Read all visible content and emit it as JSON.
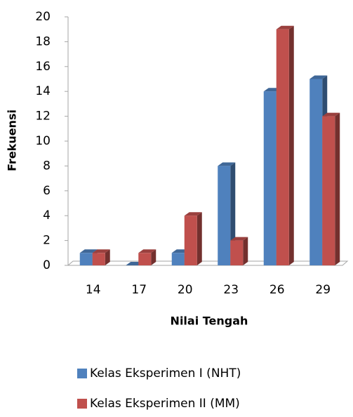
{
  "chart_data": {
    "type": "bar",
    "x_label": "Nilai Tengah",
    "y_label": "Frekuensi",
    "categories": [
      "14",
      "17",
      "20",
      "23",
      "26",
      "29"
    ],
    "series": [
      {
        "name": "Kelas Eksperimen I (NHT)",
        "color": "#4f81bd",
        "values": [
          1,
          0,
          1,
          8,
          14,
          15
        ]
      },
      {
        "name": "Kelas Eksperimen II (MM)",
        "color": "#c0504d",
        "values": [
          1,
          1,
          4,
          2,
          19,
          12
        ]
      }
    ],
    "ylim": [
      0,
      20
    ],
    "yticks": [
      0,
      2,
      4,
      6,
      8,
      10,
      12,
      14,
      16,
      18,
      20
    ],
    "grid": false,
    "legend": "bottom"
  }
}
